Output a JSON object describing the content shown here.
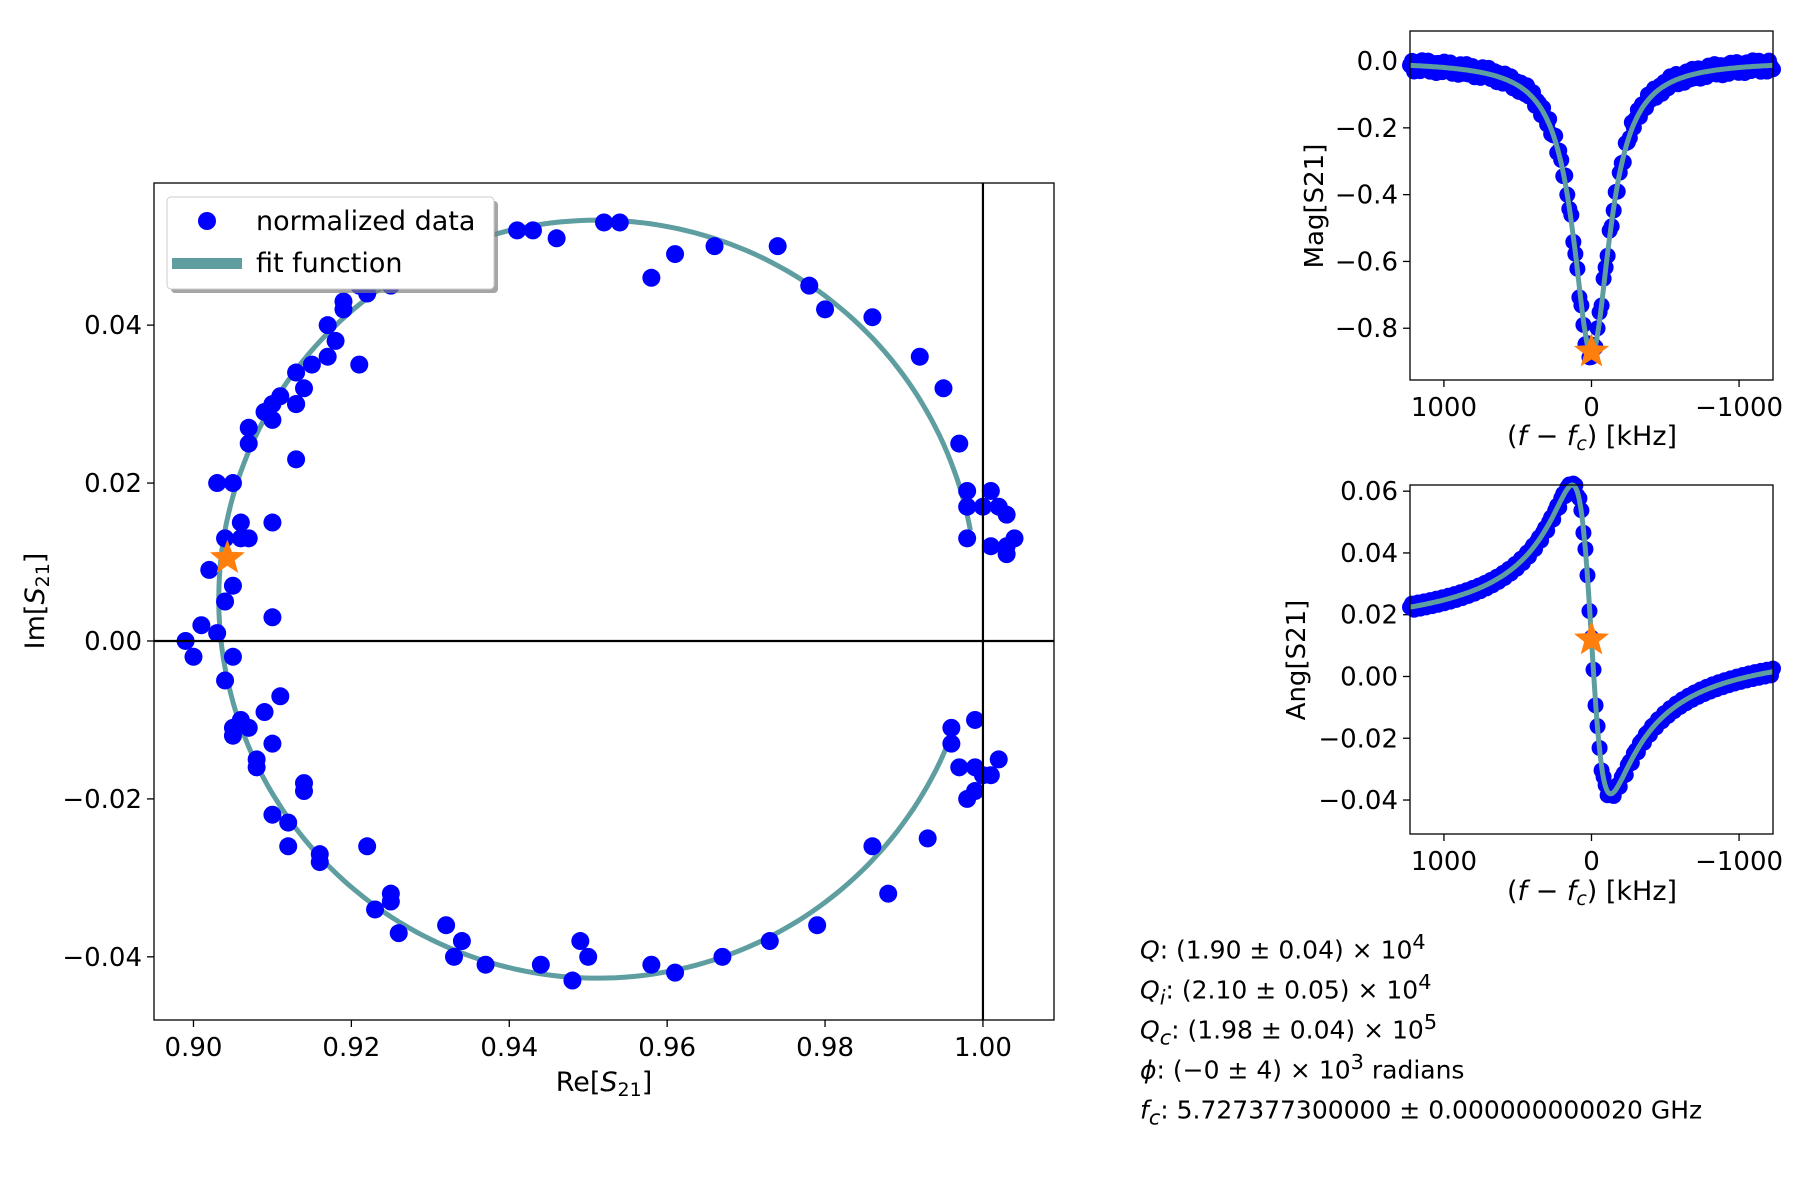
{
  "colors": {
    "data": "#0000ff",
    "fit": "#5f9ea0",
    "marker": "#ff7f0e",
    "axis": "#000000"
  },
  "chart_data": [
    {
      "type": "scatter",
      "panel": "complex-plane",
      "xlabel_main": "Re[",
      "xlabel_sub": "21",
      "xlabel_var": "S",
      "xlabel_end": "]",
      "ylabel_main": "Im[",
      "ylabel_sub": "21",
      "ylabel_var": "S",
      "ylabel_end": "]",
      "xlim": [
        0.895,
        1.009
      ],
      "ylim": [
        -0.048,
        0.058
      ],
      "xticks": [
        0.9,
        0.92,
        0.94,
        0.96,
        0.98,
        1.0
      ],
      "xtick_labels": [
        "0.90",
        "0.92",
        "0.94",
        "0.96",
        "0.98",
        "1.00"
      ],
      "yticks": [
        -0.04,
        -0.02,
        0.0,
        0.02,
        0.04
      ],
      "ytick_labels": [
        "−0.04",
        "−0.02",
        "0.00",
        "0.02",
        "0.04"
      ],
      "legend": {
        "position": "upper-left",
        "entries": [
          "normalized data",
          "fit function"
        ]
      },
      "reference_lines": {
        "vertical_x": 1.0,
        "horizontal_y": 0.0
      },
      "series": [
        {
          "name": "normalized data",
          "points": [
            [
              0.899,
              0.0
            ],
            [
              0.9,
              -0.002
            ],
            [
              0.901,
              0.002
            ],
            [
              0.902,
              0.009
            ],
            [
              0.903,
              0.001
            ],
            [
              0.903,
              0.02
            ],
            [
              0.904,
              0.013
            ],
            [
              0.904,
              0.005
            ],
            [
              0.905,
              0.02
            ],
            [
              0.905,
              0.007
            ],
            [
              0.905,
              -0.002
            ],
            [
              0.904,
              -0.005
            ],
            [
              0.905,
              -0.011
            ],
            [
              0.905,
              -0.012
            ],
            [
              0.906,
              0.013
            ],
            [
              0.906,
              0.015
            ],
            [
              0.906,
              -0.01
            ],
            [
              0.907,
              0.013
            ],
            [
              0.907,
              -0.011
            ],
            [
              0.907,
              0.025
            ],
            [
              0.907,
              0.027
            ],
            [
              0.908,
              -0.015
            ],
            [
              0.908,
              -0.016
            ],
            [
              0.909,
              0.029
            ],
            [
              0.909,
              -0.009
            ],
            [
              0.91,
              0.03
            ],
            [
              0.91,
              0.028
            ],
            [
              0.91,
              0.015
            ],
            [
              0.91,
              -0.022
            ],
            [
              0.91,
              -0.013
            ],
            [
              0.91,
              0.003
            ],
            [
              0.911,
              0.031
            ],
            [
              0.911,
              -0.007
            ],
            [
              0.912,
              -0.023
            ],
            [
              0.912,
              -0.026
            ],
            [
              0.913,
              0.023
            ],
            [
              0.913,
              0.03
            ],
            [
              0.913,
              0.03
            ],
            [
              0.913,
              0.034
            ],
            [
              0.914,
              0.032
            ],
            [
              0.914,
              -0.018
            ],
            [
              0.914,
              -0.019
            ],
            [
              0.915,
              0.035
            ],
            [
              0.916,
              -0.027
            ],
            [
              0.916,
              -0.028
            ],
            [
              0.917,
              0.04
            ],
            [
              0.917,
              0.036
            ],
            [
              0.918,
              0.038
            ],
            [
              0.919,
              0.042
            ],
            [
              0.919,
              0.043
            ],
            [
              0.921,
              0.035
            ],
            [
              0.921,
              0.045
            ],
            [
              0.922,
              0.044
            ],
            [
              0.922,
              -0.026
            ],
            [
              0.923,
              -0.034
            ],
            [
              0.924,
              0.048
            ],
            [
              0.925,
              0.045
            ],
            [
              0.925,
              -0.033
            ],
            [
              0.925,
              -0.032
            ],
            [
              0.926,
              -0.037
            ],
            [
              0.928,
              0.05
            ],
            [
              0.93,
              0.051
            ],
            [
              0.932,
              0.051
            ],
            [
              0.932,
              -0.036
            ],
            [
              0.933,
              -0.04
            ],
            [
              0.934,
              -0.038
            ],
            [
              0.936,
              0.051
            ],
            [
              0.937,
              -0.041
            ],
            [
              0.941,
              0.052
            ],
            [
              0.943,
              0.052
            ],
            [
              0.944,
              -0.041
            ],
            [
              0.946,
              0.051
            ],
            [
              0.948,
              -0.043
            ],
            [
              0.949,
              -0.038
            ],
            [
              0.95,
              -0.04
            ],
            [
              0.952,
              0.053
            ],
            [
              0.954,
              0.053
            ],
            [
              0.958,
              0.046
            ],
            [
              0.958,
              -0.041
            ],
            [
              0.961,
              0.049
            ],
            [
              0.961,
              -0.042
            ],
            [
              0.966,
              0.05
            ],
            [
              0.967,
              -0.04
            ],
            [
              0.973,
              -0.038
            ],
            [
              0.974,
              0.05
            ],
            [
              0.978,
              0.045
            ],
            [
              0.979,
              -0.036
            ],
            [
              0.98,
              0.042
            ],
            [
              0.986,
              0.041
            ],
            [
              0.986,
              -0.026
            ],
            [
              0.988,
              -0.032
            ],
            [
              0.992,
              0.036
            ],
            [
              0.993,
              -0.025
            ],
            [
              0.995,
              0.032
            ],
            [
              0.996,
              -0.011
            ],
            [
              0.996,
              -0.013
            ],
            [
              0.997,
              0.025
            ],
            [
              0.997,
              -0.016
            ],
            [
              0.998,
              0.019
            ],
            [
              0.998,
              -0.02
            ],
            [
              0.998,
              0.017
            ],
            [
              0.998,
              0.013
            ],
            [
              0.999,
              -0.01
            ],
            [
              0.999,
              -0.016
            ],
            [
              0.999,
              -0.019
            ],
            [
              1.0,
              0.017
            ],
            [
              1.0,
              -0.017
            ],
            [
              1.001,
              0.012
            ],
            [
              1.001,
              0.019
            ],
            [
              1.001,
              -0.017
            ],
            [
              1.002,
              0.017
            ],
            [
              1.002,
              -0.015
            ],
            [
              1.003,
              0.016
            ],
            [
              1.003,
              0.011
            ],
            [
              1.003,
              0.012
            ],
            [
              1.004,
              0.013
            ]
          ]
        },
        {
          "name": "fit function",
          "circle": {
            "center": [
              0.9512,
              0.0053
            ],
            "radius": 0.048,
            "start_y": -0.011,
            "end_y": 0.014,
            "gap_side": "right"
          }
        }
      ],
      "highlight_point": [
        0.9043,
        0.0105
      ]
    },
    {
      "type": "line",
      "panel": "magnitude",
      "ylabel": "Mag[S21]",
      "xlabel_pre": "(",
      "xlabel_f": "f",
      "xlabel_mid": " − ",
      "xlabel_fc": "f",
      "xlabel_c": "c",
      "xlabel_post": ") [kHz]",
      "xlim": [
        1230,
        -1230
      ],
      "ylim": [
        -0.955,
        0.09
      ],
      "xticks": [
        1000,
        0,
        -1000
      ],
      "xtick_labels": [
        "1000",
        "0",
        "−1000"
      ],
      "yticks": [
        0.0,
        -0.2,
        -0.4,
        -0.6,
        -0.8
      ],
      "ytick_labels": [
        "0.0",
        "−0.2",
        "−0.4",
        "−0.6",
        "−0.8"
      ],
      "series": [
        {
          "name": "normalized data",
          "model": "lorentzian-dip",
          "depth": -0.88,
          "half_width": 150
        },
        {
          "name": "fit function",
          "model": "lorentzian-dip",
          "depth": -0.88,
          "half_width": 150
        }
      ],
      "highlight_point": [
        0,
        -0.87
      ]
    },
    {
      "type": "line",
      "panel": "angle",
      "ylabel": "Ang[S21]",
      "xlabel_pre": "(",
      "xlabel_f": "f",
      "xlabel_mid": " − ",
      "xlabel_fc": "f",
      "xlabel_c": "c",
      "xlabel_post": ") [kHz]",
      "xlim": [
        1230,
        -1230
      ],
      "ylim": [
        -0.051,
        0.062
      ],
      "xticks": [
        1000,
        0,
        -1000
      ],
      "xtick_labels": [
        "1000",
        "0",
        "−1000"
      ],
      "yticks": [
        0.06,
        0.04,
        0.02,
        0.0,
        -0.02,
        -0.04
      ],
      "ytick_labels": [
        "0.06",
        "0.04",
        "0.02",
        "0.00",
        "−0.02",
        "−0.04"
      ],
      "series": [
        {
          "name": "normalized data",
          "model": "dispersive",
          "peak": 0.056,
          "trough": -0.045,
          "offset": 0.012
        },
        {
          "name": "fit function",
          "model": "dispersive",
          "peak": 0.056,
          "trough": -0.045,
          "offset": 0.012
        }
      ],
      "highlight_point": [
        0,
        0.012
      ]
    }
  ],
  "annotations": {
    "q": {
      "sym": "Q",
      "sub": "",
      "val": ": (1.90 ± 0.04) × 10",
      "exp": "4",
      "tail": ""
    },
    "qi": {
      "sym": "Q",
      "sub": "i",
      "val": ": (2.10 ± 0.05) × 10",
      "exp": "4",
      "tail": ""
    },
    "qc": {
      "sym": "Q",
      "sub": "c",
      "val": ": (1.98 ± 0.04) × 10",
      "exp": "5",
      "tail": ""
    },
    "phi": {
      "sym": "ϕ",
      "sub": "",
      "val": ": (−0 ± 4) × 10",
      "exp": "3",
      "tail": " radians"
    },
    "fc": {
      "sym": "f",
      "sub": "c",
      "val": ": 5.727377300000 ± 0.000000000020 GHz",
      "exp": "",
      "tail": ""
    }
  }
}
